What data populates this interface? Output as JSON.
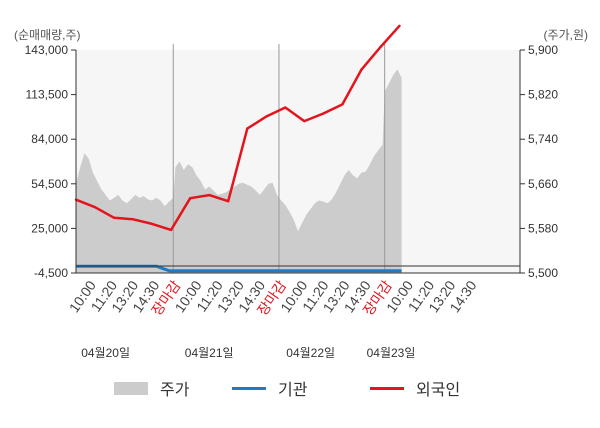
{
  "chart_data": {
    "type": "line",
    "left_axis_unit": "(순매매량,주)",
    "right_axis_unit": "(주가,원)",
    "left_ticks": [
      "143,000",
      "113,500",
      "84,000",
      "54,500",
      "25,000",
      "-4,500"
    ],
    "left_tick_values": [
      143000,
      113500,
      84000,
      54500,
      25000,
      -4500
    ],
    "right_ticks": [
      "5,900",
      "5,820",
      "5,740",
      "5,660",
      "5,580",
      "5,500"
    ],
    "right_tick_values": [
      5900,
      5820,
      5740,
      5660,
      5580,
      5500
    ],
    "left_ylim": [
      -4500,
      143000
    ],
    "right_ylim": [
      5500,
      5900
    ],
    "x_slot_count": 21,
    "x_tick_labels": [
      "10:00",
      "11:20",
      "13:20",
      "14:30",
      "장마감",
      "10:00",
      "11:20",
      "13:20",
      "14:30",
      "장마감",
      "10:00",
      "11:20",
      "13:20",
      "14:30",
      "장마감",
      "10:00",
      "11:20",
      "13:20",
      "14:30"
    ],
    "x_tick_slots": [
      0,
      1,
      2,
      3,
      4,
      5,
      6,
      7,
      8,
      9,
      10,
      11,
      12,
      13,
      14,
      15,
      16,
      17,
      18
    ],
    "closing_label": "장마감",
    "day_labels": [
      "04월20일",
      "04월21일",
      "04월22일",
      "04월23일"
    ],
    "day_label_slots": [
      1.4,
      6.3,
      11.1,
      14.9
    ],
    "day_separators": [
      4.6,
      9.6,
      14.6
    ],
    "closing_color": "#e3141c",
    "series": [
      {
        "name": "주가",
        "axis": "right",
        "style": "area",
        "color": "#cccccc",
        "points": [
          [
            0.0,
            5660
          ],
          [
            0.2,
            5690
          ],
          [
            0.4,
            5715
          ],
          [
            0.6,
            5705
          ],
          [
            0.8,
            5680
          ],
          [
            1.0,
            5665
          ],
          [
            1.2,
            5650
          ],
          [
            1.4,
            5640
          ],
          [
            1.6,
            5630
          ],
          [
            1.8,
            5635
          ],
          [
            2.0,
            5640
          ],
          [
            2.2,
            5630
          ],
          [
            2.4,
            5625
          ],
          [
            2.6,
            5632
          ],
          [
            2.8,
            5640
          ],
          [
            3.0,
            5635
          ],
          [
            3.2,
            5638
          ],
          [
            3.4,
            5632
          ],
          [
            3.6,
            5630
          ],
          [
            3.8,
            5635
          ],
          [
            4.0,
            5630
          ],
          [
            4.2,
            5620
          ],
          [
            4.4,
            5628
          ],
          [
            4.6,
            5635
          ],
          [
            4.7,
            5690
          ],
          [
            4.9,
            5700
          ],
          [
            5.1,
            5685
          ],
          [
            5.3,
            5695
          ],
          [
            5.5,
            5690
          ],
          [
            5.7,
            5675
          ],
          [
            5.9,
            5665
          ],
          [
            6.1,
            5650
          ],
          [
            6.3,
            5655
          ],
          [
            6.5,
            5648
          ],
          [
            6.7,
            5640
          ],
          [
            6.9,
            5642
          ],
          [
            7.1,
            5645
          ],
          [
            7.3,
            5650
          ],
          [
            7.5,
            5655
          ],
          [
            7.7,
            5660
          ],
          [
            7.9,
            5662
          ],
          [
            8.1,
            5658
          ],
          [
            8.3,
            5655
          ],
          [
            8.5,
            5648
          ],
          [
            8.7,
            5640
          ],
          [
            8.9,
            5650
          ],
          [
            9.1,
            5660
          ],
          [
            9.3,
            5662
          ],
          [
            9.5,
            5640
          ],
          [
            9.7,
            5630
          ],
          [
            9.9,
            5622
          ],
          [
            10.1,
            5610
          ],
          [
            10.3,
            5595
          ],
          [
            10.5,
            5575
          ],
          [
            10.7,
            5590
          ],
          [
            10.9,
            5605
          ],
          [
            11.1,
            5615
          ],
          [
            11.3,
            5625
          ],
          [
            11.5,
            5630
          ],
          [
            11.7,
            5628
          ],
          [
            11.9,
            5625
          ],
          [
            12.1,
            5632
          ],
          [
            12.3,
            5645
          ],
          [
            12.5,
            5660
          ],
          [
            12.7,
            5675
          ],
          [
            12.9,
            5685
          ],
          [
            13.1,
            5675
          ],
          [
            13.3,
            5670
          ],
          [
            13.5,
            5680
          ],
          [
            13.7,
            5682
          ],
          [
            13.9,
            5695
          ],
          [
            14.1,
            5710
          ],
          [
            14.3,
            5720
          ],
          [
            14.5,
            5730
          ],
          [
            14.6,
            5825
          ],
          [
            14.8,
            5840
          ],
          [
            15.0,
            5855
          ],
          [
            15.2,
            5865
          ],
          [
            15.4,
            5850
          ]
        ]
      },
      {
        "name": "기관",
        "axis": "left",
        "style": "line",
        "color": "#1e7bc8",
        "points": [
          [
            0.0,
            0
          ],
          [
            3.8,
            0
          ],
          [
            4.4,
            -3000
          ],
          [
            15.4,
            -3000
          ]
        ]
      },
      {
        "name": "외국인",
        "axis": "left",
        "style": "line",
        "color": "#e3141c",
        "points": [
          [
            0.0,
            44000
          ],
          [
            0.9,
            39000
          ],
          [
            1.8,
            32000
          ],
          [
            2.7,
            31000
          ],
          [
            3.6,
            28000
          ],
          [
            4.5,
            24000
          ],
          [
            5.4,
            45000
          ],
          [
            6.3,
            47000
          ],
          [
            7.2,
            43000
          ],
          [
            8.1,
            91000
          ],
          [
            9.0,
            99000
          ],
          [
            9.9,
            105000
          ],
          [
            10.8,
            96000
          ],
          [
            11.7,
            101000
          ],
          [
            12.6,
            107000
          ],
          [
            13.5,
            130000
          ],
          [
            14.4,
            145000
          ],
          [
            15.3,
            159000
          ]
        ]
      }
    ],
    "grid": false,
    "legend_position": "bottom",
    "legend": [
      "주가",
      "기관",
      "외국인"
    ]
  }
}
